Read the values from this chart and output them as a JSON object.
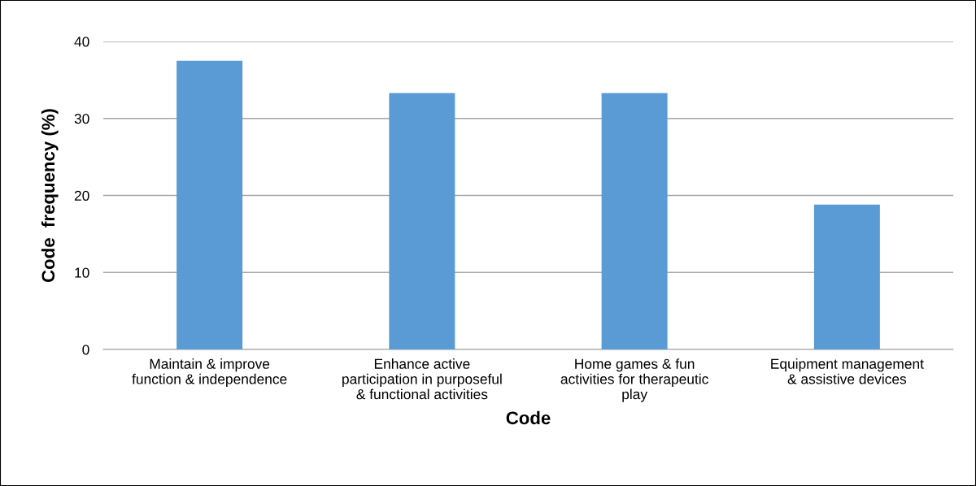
{
  "chart_data": {
    "type": "bar",
    "xlabel": "Code",
    "ylabel": "Code  frequency (%)",
    "categories": [
      "Maintain & improve\nfunction & independence",
      "Enhance active\nparticipation in purposeful\n& functional activities",
      "Home games & fun\nactivities for therapeutic\nplay",
      "Equipment management\n& assistive devices"
    ],
    "values": [
      37.5,
      33.3,
      33.3,
      18.8
    ],
    "color": "#5b9bd5",
    "ylim": [
      0,
      40
    ],
    "yticks": [
      0,
      10,
      20,
      30,
      40
    ],
    "grid": "y"
  }
}
